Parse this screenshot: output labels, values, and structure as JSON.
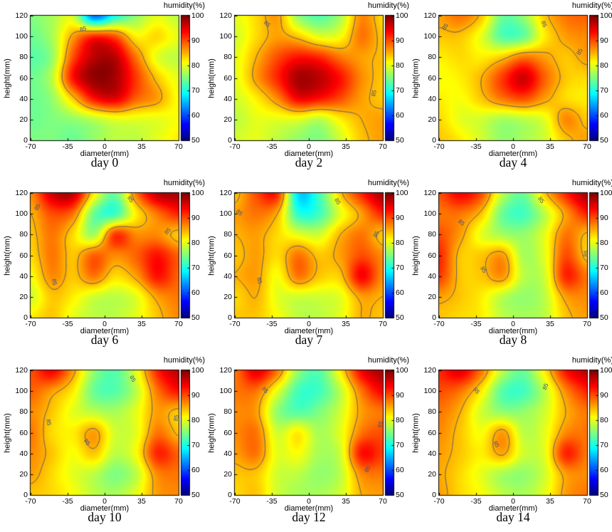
{
  "figure": {
    "background": "#ffffff",
    "frame_color": "#000000",
    "contour_color": "#3f4e78",
    "contour_label": "85"
  },
  "chart_data": {
    "type": "heatmap",
    "layout": {
      "rows": 3,
      "cols": 3
    },
    "colormap": "jet",
    "xlabel": "diameter(mm)",
    "ylabel": "height(mm)",
    "colorbar_title": "humidity(%)",
    "xlim": [
      -70,
      70
    ],
    "ylim": [
      0,
      120
    ],
    "zlim": [
      50,
      100
    ],
    "x_ticks": [
      "-70",
      "-35",
      "0",
      "35",
      "70"
    ],
    "x_tick_values": [
      -70,
      -35,
      0,
      35,
      70
    ],
    "y_ticks": [
      "0",
      "20",
      "40",
      "60",
      "80",
      "100",
      "120"
    ],
    "y_tick_values": [
      0,
      20,
      40,
      60,
      80,
      100,
      120
    ],
    "colorbar_ticks": [
      "50",
      "60",
      "70",
      "80",
      "90",
      "100"
    ],
    "colorbar_tick_values": [
      50,
      60,
      70,
      80,
      90,
      100
    ],
    "contour_level": 85,
    "grid_x": [
      -70,
      -50,
      -30,
      -10,
      10,
      30,
      50,
      70
    ],
    "grid_y": [
      120,
      100,
      80,
      60,
      40,
      20,
      0
    ],
    "panels": [
      {
        "title": "day 0",
        "values": [
          [
            75,
            77,
            79,
            62,
            70,
            76,
            80,
            78
          ],
          [
            74,
            77,
            86,
            92,
            90,
            82,
            83,
            80
          ],
          [
            73,
            76,
            90,
            97,
            97,
            88,
            80,
            78
          ],
          [
            74,
            78,
            93,
            99,
            98,
            91,
            84,
            80
          ],
          [
            74,
            76,
            84,
            93,
            95,
            89,
            86,
            81
          ],
          [
            74,
            75,
            76,
            78,
            80,
            80,
            80,
            81
          ],
          [
            75,
            75,
            74,
            76,
            78,
            78,
            80,
            82
          ]
        ],
        "contour_labels": [
          {
            "x": -20,
            "y": 107,
            "rot": -14
          }
        ]
      },
      {
        "title": "day 2",
        "values": [
          [
            80,
            83,
            86,
            76,
            73,
            77,
            87,
            83
          ],
          [
            79,
            83,
            86,
            84,
            80,
            81,
            88,
            84
          ],
          [
            80,
            85,
            90,
            93,
            92,
            88,
            86,
            84.5
          ],
          [
            80,
            86,
            92,
            98,
            97,
            93,
            87,
            84
          ],
          [
            79,
            82,
            87,
            94,
            93,
            90,
            86,
            84
          ],
          [
            78,
            80,
            80,
            80,
            78,
            82,
            85,
            86
          ],
          [
            79,
            80,
            78,
            76,
            75,
            79,
            84,
            86
          ]
        ],
        "contour_labels": [
          {
            "x": -40,
            "y": 112,
            "rot": 45
          },
          {
            "x": 62,
            "y": 45,
            "rot": -78
          }
        ]
      },
      {
        "title": "day 4",
        "values": [
          [
            86,
            88,
            84,
            74,
            76,
            84,
            88,
            89
          ],
          [
            84,
            84,
            80,
            73,
            74,
            82,
            86,
            87
          ],
          [
            82,
            83,
            82,
            84,
            88,
            86,
            84,
            86
          ],
          [
            81,
            82,
            85,
            91,
            96,
            89,
            84,
            83
          ],
          [
            82,
            81,
            84,
            88,
            90,
            86,
            83,
            82
          ],
          [
            83,
            80,
            79,
            77,
            78,
            80,
            87,
            84
          ],
          [
            84,
            82,
            79,
            76,
            77,
            79,
            84,
            86
          ]
        ],
        "contour_labels": [
          {
            "x": -64,
            "y": 109,
            "rot": -55
          },
          {
            "x": 29,
            "y": 112,
            "rot": 70
          },
          {
            "x": 63,
            "y": 85,
            "rot": -60
          }
        ]
      },
      {
        "title": "day 6",
        "values": [
          [
            87,
            96,
            97,
            82,
            74,
            88,
            97,
            98
          ],
          [
            85,
            90,
            88,
            74,
            72,
            82,
            88,
            92
          ],
          [
            84,
            88,
            83,
            77,
            91,
            87,
            87,
            84
          ],
          [
            83,
            88,
            84,
            89,
            87,
            89,
            93,
            89
          ],
          [
            81,
            87,
            84,
            88,
            83,
            86,
            93,
            89
          ],
          [
            79,
            84,
            82,
            79,
            78,
            80,
            86,
            88
          ],
          [
            82,
            84,
            80,
            78,
            78,
            80,
            84,
            87
          ]
        ],
        "contour_labels": [
          {
            "x": -63,
            "y": 106,
            "rot": -60
          },
          {
            "x": 24,
            "y": 114,
            "rot": 55
          },
          {
            "x": 60,
            "y": 83,
            "rot": -45
          },
          {
            "x": -48,
            "y": 34,
            "rot": 80
          }
        ]
      },
      {
        "title": "day 7",
        "values": [
          [
            84,
            90,
            92,
            67,
            72,
            84,
            92,
            98
          ],
          [
            86,
            88,
            85,
            71,
            72,
            80,
            86,
            92
          ],
          [
            85,
            86,
            83,
            80,
            79,
            85,
            88,
            84
          ],
          [
            84,
            86,
            83,
            88,
            84,
            86,
            90,
            87
          ],
          [
            85,
            86,
            81,
            88,
            84,
            84,
            94,
            87
          ],
          [
            83,
            85,
            80,
            79,
            79,
            80,
            86,
            85
          ],
          [
            84,
            84,
            81,
            78,
            78,
            80,
            85,
            84
          ]
        ],
        "contour_labels": [
          {
            "x": -66,
            "y": 101,
            "rot": 40
          },
          {
            "x": 27,
            "y": 112,
            "rot": 60
          },
          {
            "x": 64,
            "y": 80,
            "rot": -60
          },
          {
            "x": -47,
            "y": 36,
            "rot": 80
          }
        ]
      },
      {
        "title": "day 8",
        "values": [
          [
            90,
            94,
            90,
            78,
            74,
            84,
            92,
            98
          ],
          [
            88,
            88,
            84,
            74,
            72,
            78,
            86,
            92
          ],
          [
            90,
            86,
            80,
            77,
            76,
            80,
            88,
            84.5
          ],
          [
            92,
            84,
            84,
            86,
            77,
            80,
            90,
            84
          ],
          [
            91,
            84,
            84,
            86.5,
            78,
            79,
            92,
            88
          ],
          [
            86,
            84,
            82,
            78,
            76,
            78,
            86,
            87
          ],
          [
            84,
            83,
            82,
            78,
            77,
            78,
            84,
            86
          ]
        ],
        "contour_labels": [
          {
            "x": -49,
            "y": 91,
            "rot": 40
          },
          {
            "x": 26,
            "y": 113,
            "rot": 55
          },
          {
            "x": 69,
            "y": 62,
            "rot": -85
          },
          {
            "x": -28,
            "y": 46,
            "rot": 55
          }
        ]
      },
      {
        "title": "day 10",
        "values": [
          [
            90,
            94,
            86,
            76,
            73,
            80,
            92,
            97
          ],
          [
            89,
            86,
            82,
            74,
            73,
            78,
            88,
            93
          ],
          [
            87,
            84,
            80,
            78,
            77,
            80,
            86,
            84
          ],
          [
            88,
            83,
            82,
            86,
            79,
            80,
            88,
            84.5
          ],
          [
            87,
            84,
            81,
            84,
            78,
            81,
            92,
            89
          ],
          [
            86,
            83,
            80,
            78,
            75,
            78,
            87,
            88
          ],
          [
            84,
            83,
            81,
            78,
            77,
            80,
            86,
            87
          ]
        ],
        "contour_labels": [
          {
            "x": -53,
            "y": 70,
            "rot": 80
          },
          {
            "x": 26,
            "y": 112,
            "rot": 60
          },
          {
            "x": 68,
            "y": 74,
            "rot": -80
          },
          {
            "x": -17,
            "y": 51,
            "rot": 55
          }
        ]
      },
      {
        "title": "day 12",
        "values": [
          [
            88,
            95,
            88,
            76,
            73,
            82,
            94,
            98
          ],
          [
            88,
            88,
            80,
            72,
            72,
            78,
            88,
            94
          ],
          [
            87,
            86,
            76,
            73,
            75,
            79,
            86,
            88
          ],
          [
            87,
            88,
            79,
            82,
            77,
            80,
            88,
            90
          ],
          [
            86,
            88,
            80,
            81,
            77,
            79,
            93,
            91
          ],
          [
            84,
            84,
            79,
            78,
            76,
            78,
            87,
            88
          ],
          [
            83,
            84,
            79,
            77,
            77,
            79,
            85,
            86
          ]
        ],
        "contour_labels": [
          {
            "x": -42,
            "y": 101,
            "rot": 50
          },
          {
            "x": 56,
            "y": 25,
            "rot": -65
          },
          {
            "x": 68,
            "y": 68,
            "rot": -75
          }
        ]
      },
      {
        "title": "day 14",
        "values": [
          [
            92,
            95,
            88,
            78,
            74,
            82,
            93,
            97
          ],
          [
            90,
            88,
            82,
            73,
            72,
            78,
            87,
            92
          ],
          [
            88,
            85,
            79,
            76,
            76,
            79,
            85,
            88
          ],
          [
            87,
            84,
            81,
            86,
            78,
            80,
            87,
            88
          ],
          [
            86,
            84,
            82,
            85.5,
            79,
            80,
            92,
            88
          ],
          [
            85.5,
            83,
            80,
            77,
            76,
            79,
            86,
            87
          ],
          [
            86,
            83,
            81,
            78,
            77,
            80,
            86,
            88
          ]
        ],
        "contour_labels": [
          {
            "x": -35,
            "y": 100,
            "rot": 50
          },
          {
            "x": 31,
            "y": 104,
            "rot": -70
          },
          {
            "x": -16,
            "y": 49,
            "rot": 60
          }
        ]
      }
    ]
  }
}
